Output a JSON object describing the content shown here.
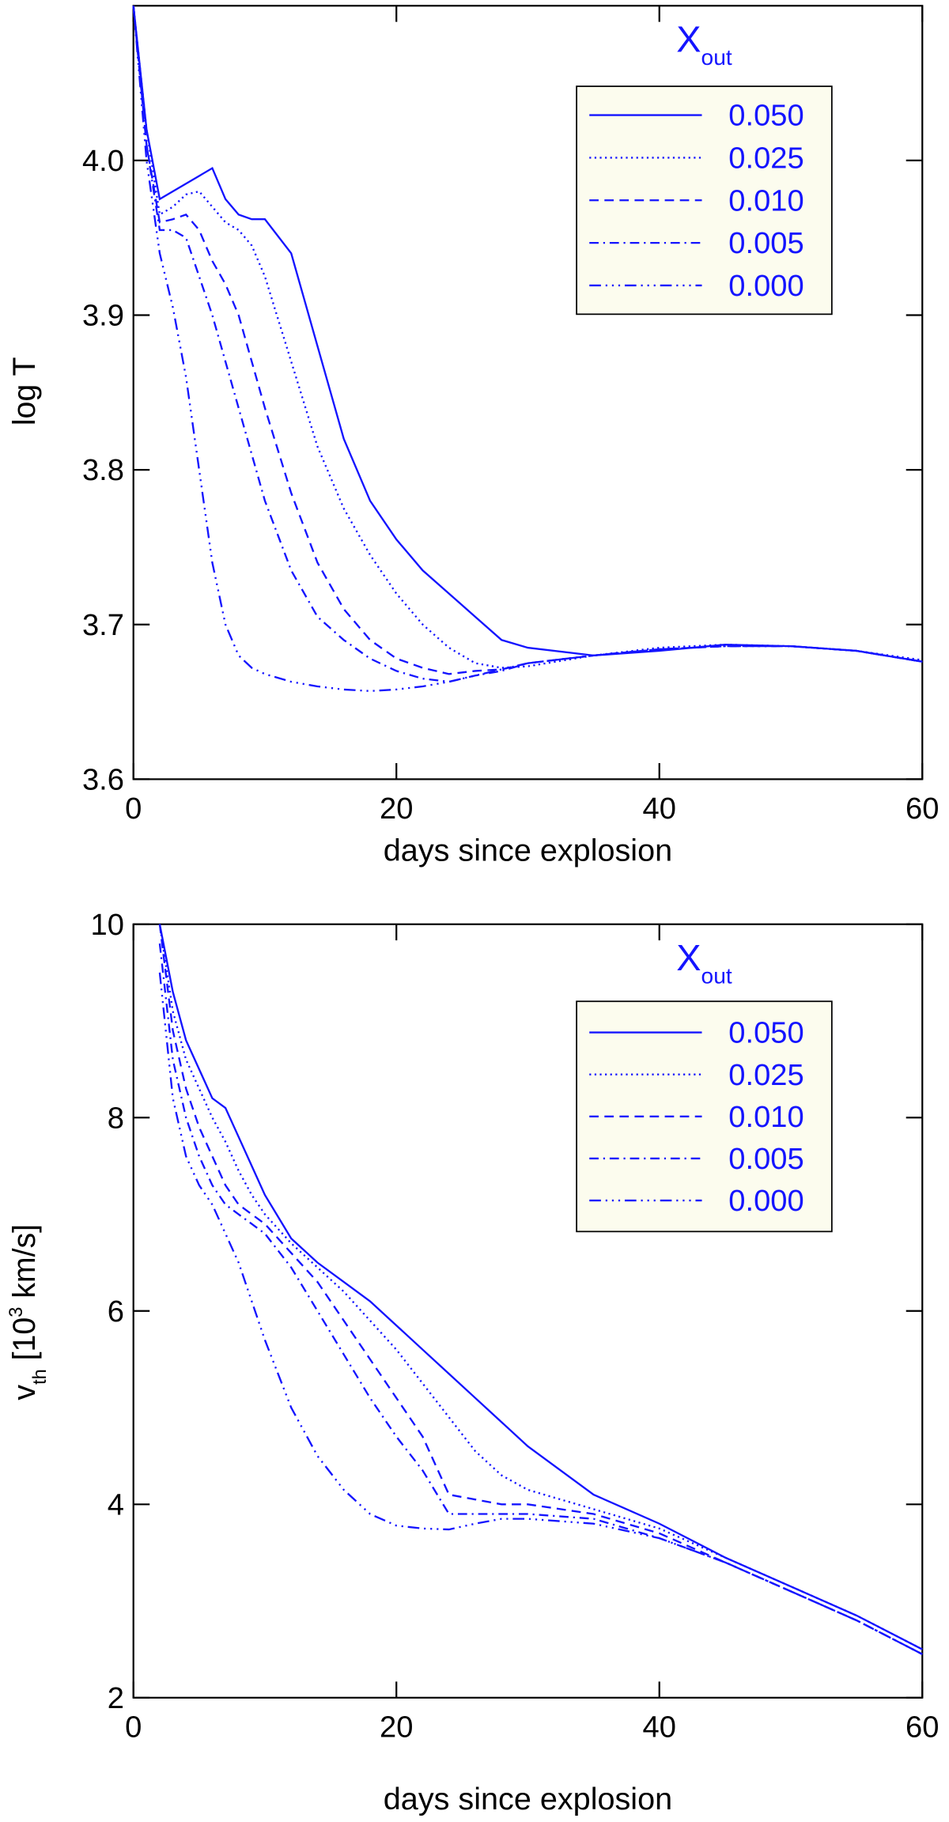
{
  "chart_data": [
    {
      "type": "line",
      "xlabel": "days since explosion",
      "ylabel": [
        {
          "text": "log T"
        }
      ],
      "legend_title": [
        {
          "text": "X"
        },
        {
          "text": "out",
          "sub": true
        }
      ],
      "xlim": [
        0,
        60
      ],
      "xticks": [
        0,
        20,
        40,
        60
      ],
      "ylim": [
        3.6,
        4.1
      ],
      "yticks": [
        {
          "value": 3.6,
          "label": "3.6"
        },
        3.7,
        3.8,
        3.9,
        {
          "value": 4.0,
          "label": "4.0"
        }
      ],
      "x": [
        0,
        1,
        2,
        3,
        4,
        5,
        6,
        7,
        8,
        9,
        10,
        12,
        14,
        16,
        18,
        20,
        22,
        24,
        26,
        28,
        30,
        35,
        40,
        45,
        50,
        55,
        60
      ],
      "series": [
        {
          "name": "0.050",
          "color": "#1414ff",
          "dash": "solid",
          "values": [
            4.1,
            4.02,
            3.975,
            3.98,
            3.985,
            3.99,
            3.995,
            3.975,
            3.965,
            3.962,
            3.962,
            3.94,
            3.88,
            3.82,
            3.78,
            3.755,
            3.735,
            3.72,
            3.705,
            3.69,
            3.685,
            3.68,
            3.683,
            3.687,
            3.686,
            3.683,
            3.676
          ]
        },
        {
          "name": "0.025",
          "color": "#1414ff",
          "dash": "dotted",
          "values": [
            4.1,
            4.02,
            3.965,
            3.97,
            3.978,
            3.98,
            3.97,
            3.96,
            3.955,
            3.945,
            3.925,
            3.87,
            3.815,
            3.775,
            3.745,
            3.72,
            3.7,
            3.685,
            3.675,
            3.672,
            3.673,
            3.68,
            3.685,
            3.687,
            3.686,
            3.683,
            3.677
          ]
        },
        {
          "name": "0.010",
          "color": "#1414ff",
          "dash": "dashed",
          "values": [
            4.1,
            4.01,
            3.96,
            3.962,
            3.965,
            3.955,
            3.935,
            3.92,
            3.9,
            3.87,
            3.84,
            3.785,
            3.74,
            3.71,
            3.69,
            3.678,
            3.672,
            3.668,
            3.67,
            3.671,
            3.675,
            3.68,
            3.684,
            3.686,
            3.686,
            3.683,
            3.676
          ]
        },
        {
          "name": "0.005",
          "color": "#1414ff",
          "dash": "dashdot",
          "values": [
            4.1,
            4.01,
            3.955,
            3.955,
            3.95,
            3.925,
            3.9,
            3.87,
            3.84,
            3.81,
            3.78,
            3.735,
            3.705,
            3.69,
            3.678,
            3.67,
            3.665,
            3.663,
            3.667,
            3.67,
            3.675,
            3.68,
            3.684,
            3.686,
            3.686,
            3.683,
            3.676
          ]
        },
        {
          "name": "0.000",
          "color": "#1414ff",
          "dash": "dashdotdotdot",
          "values": [
            4.1,
            4.0,
            3.94,
            3.905,
            3.86,
            3.8,
            3.74,
            3.7,
            3.68,
            3.672,
            3.668,
            3.663,
            3.66,
            3.658,
            3.657,
            3.658,
            3.66,
            3.663,
            3.667,
            3.671,
            3.675,
            3.68,
            3.684,
            3.686,
            3.686,
            3.683,
            3.676
          ]
        }
      ]
    },
    {
      "type": "line",
      "xlabel": "days since explosion",
      "ylabel": [
        {
          "text": "v"
        },
        {
          "text": "th",
          "sub": true
        },
        {
          "text": " [10"
        },
        {
          "text": "3",
          "sup": true
        },
        {
          "text": " km/s]"
        }
      ],
      "legend_title": [
        {
          "text": "X"
        },
        {
          "text": "out",
          "sub": true
        }
      ],
      "xlim": [
        0,
        60
      ],
      "xticks": [
        0,
        20,
        40,
        60
      ],
      "ylim": [
        2,
        10
      ],
      "yticks": [
        2,
        4,
        6,
        8,
        10
      ],
      "x": [
        0,
        1,
        2,
        3,
        4,
        5,
        6,
        7,
        8,
        9,
        10,
        12,
        14,
        16,
        18,
        20,
        22,
        24,
        26,
        28,
        30,
        35,
        40,
        45,
        50,
        55,
        60
      ],
      "series": [
        {
          "name": "0.050",
          "color": "#1414ff",
          "dash": "solid",
          "values": [
            null,
            null,
            10,
            9.3,
            8.8,
            8.5,
            8.2,
            8.1,
            7.8,
            7.5,
            7.2,
            6.75,
            6.5,
            6.3,
            6.1,
            5.85,
            5.6,
            5.35,
            5.1,
            4.85,
            4.6,
            4.1,
            3.8,
            3.45,
            3.15,
            2.85,
            2.5
          ]
        },
        {
          "name": "0.025",
          "color": "#1414ff",
          "dash": "dotted",
          "values": [
            null,
            null,
            10,
            9.1,
            8.6,
            8.3,
            8.0,
            7.75,
            7.45,
            7.2,
            7.0,
            6.7,
            6.45,
            6.2,
            5.9,
            5.6,
            5.25,
            4.9,
            4.55,
            4.3,
            4.15,
            3.95,
            3.75,
            3.45,
            3.15,
            2.85,
            2.5
          ]
        },
        {
          "name": "0.010",
          "color": "#1414ff",
          "dash": "dashed",
          "values": [
            null,
            null,
            10,
            8.9,
            8.3,
            7.9,
            7.6,
            7.3,
            7.1,
            7.0,
            6.9,
            6.6,
            6.3,
            5.9,
            5.5,
            5.1,
            4.7,
            4.1,
            4.05,
            4.0,
            4.0,
            3.9,
            3.7,
            3.4,
            3.1,
            2.8,
            2.45
          ]
        },
        {
          "name": "0.005",
          "color": "#1414ff",
          "dash": "dashdot",
          "values": [
            null,
            null,
            9.8,
            8.6,
            8.0,
            7.6,
            7.3,
            7.1,
            7.0,
            6.9,
            6.8,
            6.45,
            6.0,
            5.55,
            5.1,
            4.7,
            4.35,
            3.9,
            3.9,
            3.9,
            3.9,
            3.85,
            3.65,
            3.4,
            3.1,
            2.8,
            2.45
          ]
        },
        {
          "name": "0.000",
          "color": "#1414ff",
          "dash": "dashdotdotdot",
          "values": [
            null,
            null,
            9.5,
            8.2,
            7.6,
            7.3,
            7.1,
            6.8,
            6.5,
            6.1,
            5.7,
            5.0,
            4.5,
            4.15,
            3.9,
            3.78,
            3.75,
            3.74,
            3.8,
            3.85,
            3.85,
            3.8,
            3.65,
            3.4,
            3.1,
            2.8,
            2.45
          ]
        }
      ]
    }
  ]
}
